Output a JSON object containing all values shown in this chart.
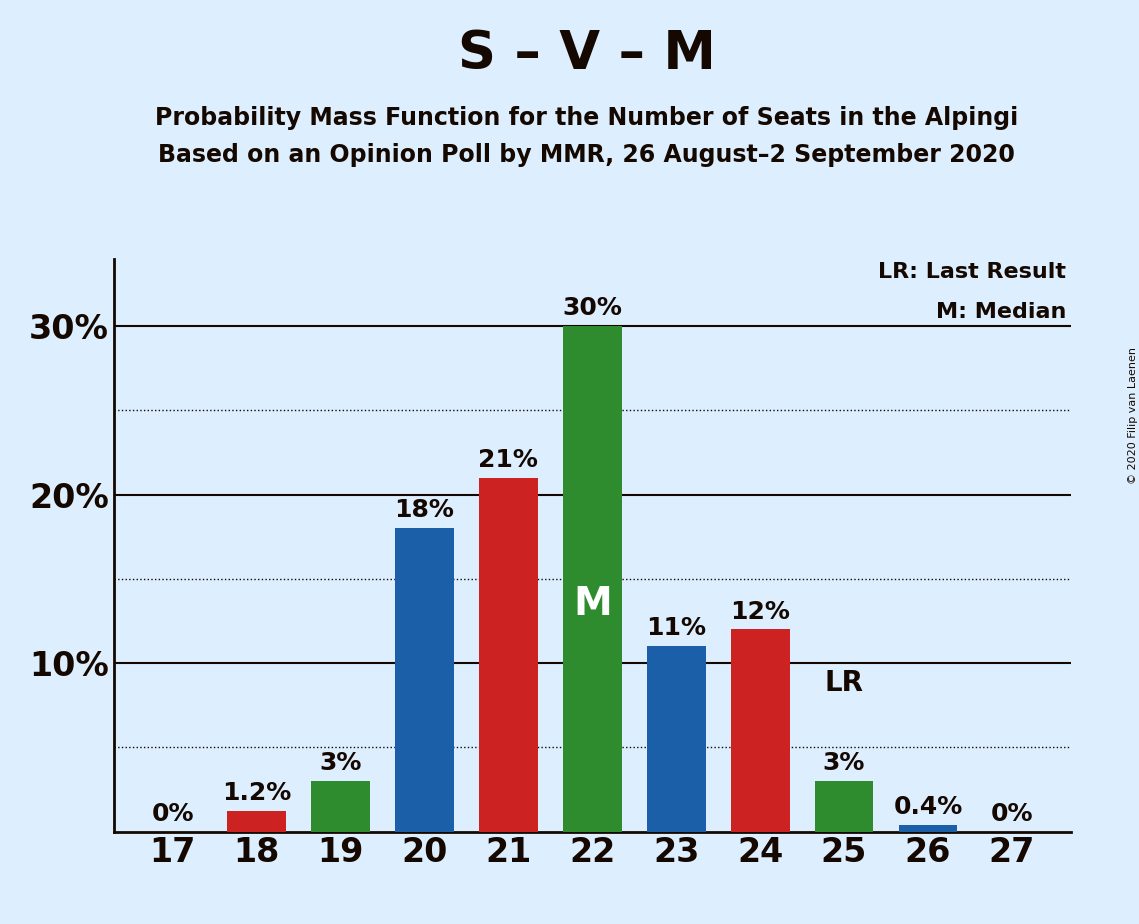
{
  "title": "S – V – M",
  "subtitle1": "Probability Mass Function for the Number of Seats in the Alpingi",
  "subtitle2": "Based on an Opinion Poll by MMR, 26 August–2 September 2020",
  "copyright": "© 2020 Filip van Laenen",
  "seats": [
    17,
    18,
    19,
    20,
    21,
    22,
    23,
    24,
    25,
    26,
    27
  ],
  "values": [
    0.0,
    1.2,
    3.0,
    18.0,
    21.0,
    30.0,
    11.0,
    12.0,
    3.0,
    0.4,
    0.0
  ],
  "bar_colors": [
    "#1a5fa8",
    "#cc2222",
    "#2e8b2e",
    "#1a5fa8",
    "#cc2222",
    "#2e8b2e",
    "#1a5fa8",
    "#cc2222",
    "#2e8b2e",
    "#1a5fa8",
    "#cc2222"
  ],
  "labels": [
    "0%",
    "1.2%",
    "3%",
    "18%",
    "21%",
    "30%",
    "11%",
    "12%",
    "3%",
    "0.4%",
    "0%"
  ],
  "median_seat": 22,
  "lr_seat": 25,
  "background_color": "#ddeeff",
  "ylim_max": 34,
  "solid_yticks": [
    10,
    20,
    30
  ],
  "dotted_yticks": [
    5,
    15,
    25
  ],
  "text_color": "#150800",
  "bar_width": 0.7,
  "title_fontsize": 38,
  "subtitle_fontsize": 17,
  "ytick_fontsize": 24,
  "xtick_fontsize": 24,
  "label_fontsize": 18,
  "legend_fontsize": 16,
  "median_label_fontsize": 28,
  "lr_label_fontsize": 20
}
